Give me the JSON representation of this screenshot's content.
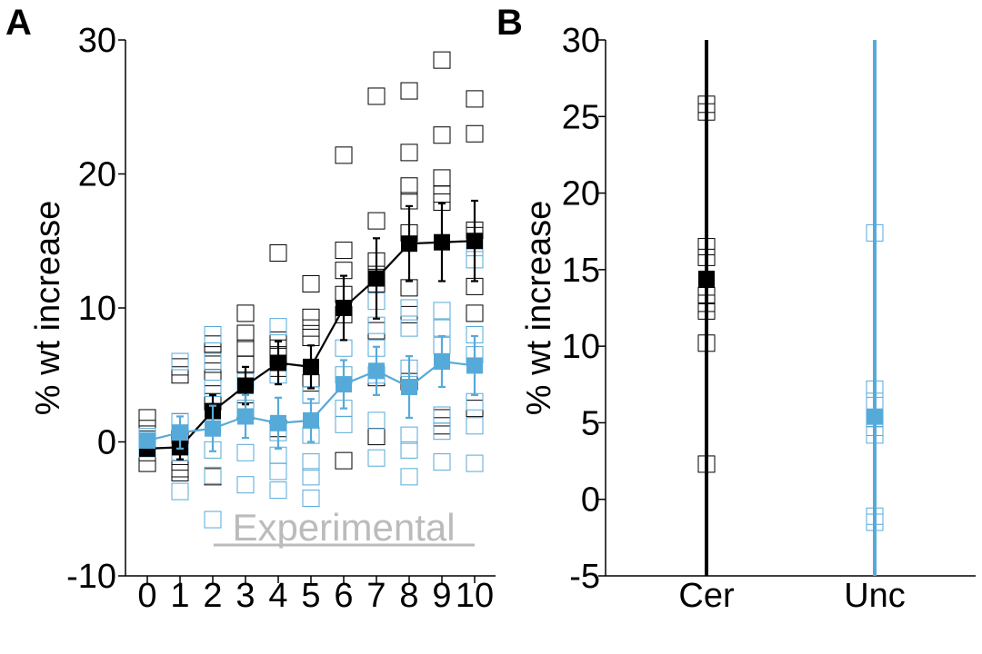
{
  "colors": {
    "black": "#000000",
    "blue": "#56aad9",
    "annotation": "#bbbbbb"
  },
  "chart_data": [
    {
      "panel_label": "A",
      "type": "scatter",
      "xlabel": "",
      "ylabel": "% wt increase",
      "ylim": [
        -10,
        30
      ],
      "yticks": [
        "-10",
        "0",
        "10",
        "20",
        "30"
      ],
      "x_categories": [
        "0",
        "1",
        "2",
        "3",
        "4",
        "5",
        "6",
        "7",
        "8",
        "9",
        "10"
      ],
      "annotation": "Experimental",
      "series": [
        {
          "color": "#000000",
          "x": [
            0,
            1,
            2,
            3,
            4,
            5,
            6,
            7,
            8,
            9,
            10
          ],
          "mean": [
            -0.5,
            -0.4,
            2.3,
            4.2,
            5.9,
            5.6,
            10.0,
            12.2,
            14.8,
            14.9,
            15.0
          ],
          "err": [
            0.5,
            0.9,
            1.2,
            1.4,
            1.6,
            1.6,
            2.4,
            3.0,
            2.8,
            2.9,
            3.0
          ],
          "individual": [
            [
              1.8,
              1.0,
              0.2,
              -0.8,
              -1.6,
              -0.4
            ],
            [
              5.6,
              5.0,
              1.5,
              0.3,
              -1.5,
              -2.3,
              -2.0
            ],
            [
              7.3,
              6.5,
              5.8,
              4.8,
              3.0,
              -2.6
            ],
            [
              9.6,
              8.1,
              7.0,
              5.8,
              4.6,
              2.3
            ],
            [
              14.1,
              7.6,
              7.0,
              6.5,
              5.5,
              1.0
            ],
            [
              11.8,
              9.3,
              8.5,
              7.8,
              4.4,
              3.5
            ],
            [
              21.4,
              14.3,
              12.8,
              11.0,
              9.5,
              -1.4
            ],
            [
              25.8,
              16.5,
              13.5,
              12.5,
              11.8,
              8.3,
              4.8,
              0.4
            ],
            [
              26.2,
              21.6,
              19.1,
              18.0,
              15.6,
              11.5,
              9.5,
              4.5
            ],
            [
              28.5,
              22.9,
              19.7,
              18.5,
              17.9,
              1.8,
              1.2
            ],
            [
              25.6,
              23.0,
              15.8,
              15.4,
              11.6,
              9.6,
              2.5
            ]
          ]
        },
        {
          "color": "#56aad9",
          "x": [
            0,
            1,
            2,
            3,
            4,
            5,
            6,
            7,
            8,
            9,
            10
          ],
          "mean": [
            0.1,
            0.7,
            1.0,
            1.9,
            1.4,
            1.6,
            4.3,
            5.3,
            4.1,
            6.0,
            5.7
          ],
          "err": [
            0.5,
            1.2,
            1.7,
            1.6,
            1.9,
            1.6,
            1.8,
            1.8,
            2.3,
            1.9,
            2.2
          ],
          "individual": [
            [
              0.4,
              -0.5,
              0.0
            ],
            [
              6.0,
              1.5,
              -0.8,
              -3.7
            ],
            [
              8.0,
              6.0,
              4.0,
              -0.6,
              -2.5,
              -5.8
            ],
            [
              4.5,
              2.5,
              -0.8,
              -3.2
            ],
            [
              8.6,
              5.0,
              0.7,
              -1.0,
              -2.2,
              -3.6
            ],
            [
              3.5,
              0.5,
              -1.5,
              -2.6,
              -4.2
            ],
            [
              7.0,
              5.0,
              2.5,
              1.3
            ],
            [
              10.5,
              8.7,
              7.0,
              5.0,
              1.6,
              -1.2
            ],
            [
              10.0,
              8.5,
              5.5,
              0.5,
              -0.6,
              -2.6
            ],
            [
              9.8,
              8.5,
              7.2,
              2.0,
              0.8,
              -1.5
            ],
            [
              14.5,
              13.6,
              8.0,
              6.5,
              3.0,
              1.2,
              -1.6
            ]
          ]
        }
      ]
    },
    {
      "panel_label": "B",
      "type": "scatter",
      "xlabel": "",
      "ylabel": "% wt increase",
      "ylim": [
        -5,
        30
      ],
      "yticks": [
        "-5",
        "0",
        "5",
        "10",
        "15",
        "20",
        "25",
        "30"
      ],
      "categories": [
        "Cer",
        "Unc"
      ],
      "series": [
        {
          "name": "Cer",
          "color": "#000000",
          "mean": 14.4,
          "err": 30,
          "individual": [
            25.8,
            25.3,
            16.5,
            15.8,
            13.3,
            12.8,
            12.3,
            10.2,
            2.3
          ]
        },
        {
          "name": "Unc",
          "color": "#56aad9",
          "mean": 5.4,
          "err": 30,
          "individual": [
            17.4,
            7.2,
            6.4,
            5.3,
            4.7,
            4.2,
            -1.1,
            -1.5
          ]
        }
      ]
    }
  ]
}
